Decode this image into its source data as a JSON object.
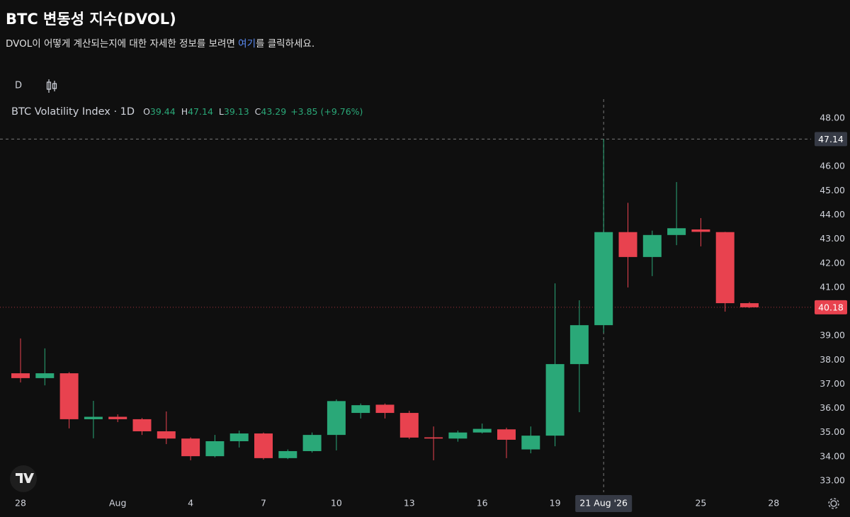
{
  "header": {
    "title": "BTC 변동성 지수(DVOL)",
    "subtitle_before": "DVOL이 어떻게 계산되는지에 대한 자세한 정보를 보려면 ",
    "subtitle_link": "여기",
    "subtitle_after": "를 클릭하세요."
  },
  "toolbar": {
    "interval": "D"
  },
  "chart_data": {
    "type": "candlestick",
    "legend": {
      "title": "BTC Volatility Index · 1D",
      "labels": [
        "O",
        "H",
        "L",
        "C"
      ],
      "change": "+3.85 (+9.76%)"
    },
    "x": [
      "2026-07-28",
      "2026-07-29",
      "2026-07-30",
      "2026-07-31",
      "2026-08-01",
      "2026-08-02",
      "2026-08-03",
      "2026-08-04",
      "2026-08-05",
      "2026-08-06",
      "2026-08-07",
      "2026-08-08",
      "2026-08-09",
      "2026-08-10",
      "2026-08-11",
      "2026-08-12",
      "2026-08-13",
      "2026-08-14",
      "2026-08-15",
      "2026-08-16",
      "2026-08-17",
      "2026-08-18",
      "2026-08-19",
      "2026-08-20",
      "2026-08-21",
      "2026-08-22",
      "2026-08-23",
      "2026-08-24",
      "2026-08-25",
      "2026-08-26",
      "2026-08-27"
    ],
    "open": [
      37.45,
      37.25,
      37.45,
      35.55,
      35.65,
      35.55,
      35.05,
      34.75,
      34.02,
      34.64,
      34.96,
      33.94,
      34.23,
      34.9,
      35.81,
      36.15,
      35.81,
      34.8,
      34.75,
      35.0,
      35.13,
      34.3,
      34.87,
      37.83,
      39.44,
      43.29,
      42.26,
      43.17,
      43.4,
      43.29,
      40.35
    ],
    "high": [
      38.89,
      38.48,
      37.5,
      36.31,
      35.75,
      35.6,
      35.87,
      34.8,
      34.9,
      35.08,
      35.0,
      34.3,
      35.0,
      36.37,
      36.2,
      36.2,
      35.9,
      35.25,
      35.08,
      35.37,
      35.2,
      35.25,
      41.17,
      40.47,
      47.14,
      44.5,
      43.35,
      45.36,
      43.87,
      43.3,
      40.4
    ],
    "low": [
      37.07,
      36.95,
      35.17,
      34.76,
      35.43,
      34.9,
      34.52,
      33.85,
      33.97,
      34.38,
      33.88,
      33.9,
      34.17,
      34.26,
      35.58,
      35.58,
      34.73,
      33.85,
      34.62,
      34.96,
      33.94,
      34.14,
      34.43,
      35.84,
      39.13,
      41.0,
      41.47,
      42.75,
      42.7,
      40.0,
      40.15
    ],
    "close": [
      37.25,
      37.45,
      35.55,
      35.65,
      35.55,
      35.05,
      34.75,
      34.02,
      34.64,
      34.96,
      33.94,
      34.23,
      34.9,
      36.3,
      36.13,
      35.81,
      34.79,
      34.75,
      35.0,
      35.15,
      34.7,
      34.87,
      37.83,
      39.44,
      43.29,
      42.26,
      43.17,
      43.45,
      43.3,
      40.35,
      40.18
    ],
    "up_color": "#2aa878",
    "down_color": "#e8424f",
    "ylim": [
      32.53,
      48.79
    ],
    "yticks": [
      {
        "value": 33,
        "label": "33.00"
      },
      {
        "value": 34,
        "label": "34.00"
      },
      {
        "value": 35,
        "label": "35.00"
      },
      {
        "value": 36,
        "label": "36.00"
      },
      {
        "value": 37,
        "label": "37.00"
      },
      {
        "value": 38,
        "label": "38.00"
      },
      {
        "value": 39,
        "label": "39.00"
      },
      {
        "value": 40,
        "label": "40.00"
      },
      {
        "value": 41,
        "label": "41.00"
      },
      {
        "value": 42,
        "label": "42.00"
      },
      {
        "value": 43,
        "label": "43.00"
      },
      {
        "value": 44,
        "label": "44.00"
      },
      {
        "value": 45,
        "label": "45.00"
      },
      {
        "value": 46,
        "label": "46.00"
      },
      {
        "value": 47,
        "label": "47.00"
      },
      {
        "value": 48,
        "label": "48.00"
      }
    ],
    "xticks": [
      {
        "value": "2026-07-28",
        "label": "28"
      },
      {
        "value": "2026-08-01",
        "label": "Aug"
      },
      {
        "value": "2026-08-04",
        "label": "4"
      },
      {
        "value": "2026-08-07",
        "label": "7"
      },
      {
        "value": "2026-08-10",
        "label": "10"
      },
      {
        "value": "2026-08-13",
        "label": "13"
      },
      {
        "value": "2026-08-16",
        "label": "16"
      },
      {
        "value": "2026-08-19",
        "label": "19"
      },
      {
        "value": "2026-08-25",
        "label": "25"
      },
      {
        "value": "2026-08-28",
        "label": "28"
      }
    ],
    "crosshair": {
      "x": "2026-08-21",
      "x_label": "21 Aug '26",
      "y": 47.14
    }
  }
}
